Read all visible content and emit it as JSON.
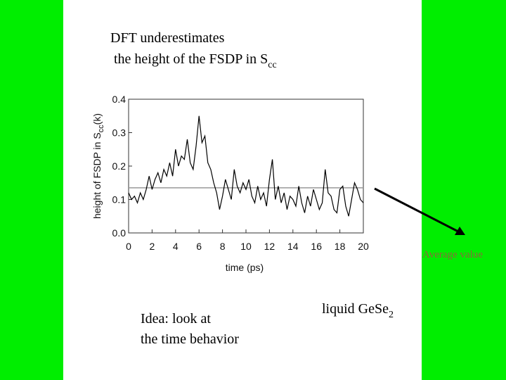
{
  "slide": {
    "title_line1": "DFT underestimates",
    "title_line2": "the height of the FSDP in S",
    "title_sub": "cc",
    "note_line1": "Idea: look at",
    "note_line2": "the time behavior",
    "system": "liquid GeSe",
    "system_sub": "2",
    "arrow_label": "Average value"
  },
  "chart_data": {
    "type": "line",
    "xlabel": "time (ps)",
    "ylabel": "height of FSDP in S",
    "ylabel_sub": "cc",
    "ylabel_tail": "(k)",
    "x": [
      0,
      0.25,
      0.5,
      0.75,
      1,
      1.25,
      1.5,
      1.75,
      2,
      2.25,
      2.5,
      2.75,
      3,
      3.25,
      3.5,
      3.75,
      4,
      4.25,
      4.5,
      4.75,
      5,
      5.25,
      5.5,
      5.75,
      6,
      6.25,
      6.5,
      6.75,
      7,
      7.25,
      7.5,
      7.75,
      8,
      8.25,
      8.5,
      8.75,
      9,
      9.25,
      9.5,
      9.75,
      10,
      10.25,
      10.5,
      10.75,
      11,
      11.25,
      11.5,
      11.75,
      12,
      12.25,
      12.5,
      12.75,
      13,
      13.25,
      13.5,
      13.75,
      14,
      14.25,
      14.5,
      14.75,
      15,
      15.25,
      15.5,
      15.75,
      16,
      16.25,
      16.5,
      16.75,
      17,
      17.25,
      17.5,
      17.75,
      18,
      18.25,
      18.5,
      18.75,
      19,
      19.25,
      19.5,
      19.75,
      20
    ],
    "series": [
      {
        "color": "#000000",
        "values": [
          0.12,
          0.1,
          0.11,
          0.09,
          0.12,
          0.1,
          0.13,
          0.17,
          0.13,
          0.16,
          0.18,
          0.15,
          0.19,
          0.17,
          0.21,
          0.17,
          0.25,
          0.2,
          0.23,
          0.22,
          0.28,
          0.21,
          0.19,
          0.26,
          0.35,
          0.27,
          0.29,
          0.21,
          0.19,
          0.15,
          0.12,
          0.07,
          0.11,
          0.16,
          0.13,
          0.1,
          0.19,
          0.14,
          0.12,
          0.15,
          0.13,
          0.16,
          0.11,
          0.09,
          0.14,
          0.1,
          0.12,
          0.08,
          0.16,
          0.22,
          0.1,
          0.14,
          0.09,
          0.12,
          0.07,
          0.11,
          0.1,
          0.08,
          0.14,
          0.09,
          0.06,
          0.11,
          0.08,
          0.13,
          0.1,
          0.07,
          0.09,
          0.19,
          0.12,
          0.11,
          0.07,
          0.06,
          0.13,
          0.14,
          0.08,
          0.05,
          0.1,
          0.15,
          0.13,
          0.1,
          0.09
        ]
      }
    ],
    "average_line": {
      "value": 0.135,
      "color": "#999999"
    },
    "xlim": [
      0,
      20
    ],
    "ylim": [
      0,
      0.4
    ],
    "xticks": [
      0,
      2,
      4,
      6,
      8,
      10,
      12,
      14,
      16,
      18,
      20
    ],
    "yticks": [
      {
        "value": 0,
        "label": "0.0"
      },
      0.1,
      0.2,
      0.3,
      0.4
    ]
  }
}
